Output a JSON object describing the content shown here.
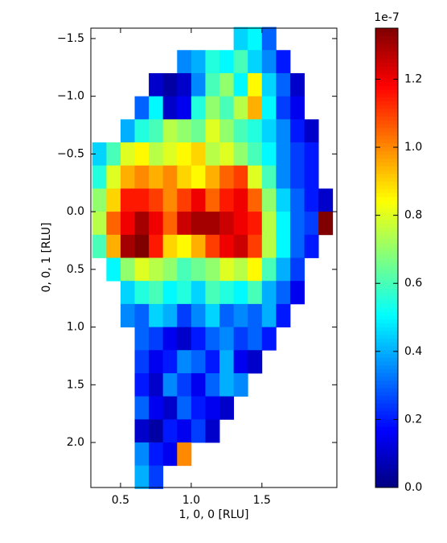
{
  "chart_data": {
    "type": "heatmap",
    "xlabel": "1, 0, 0 [RLU]",
    "ylabel": "0, 0, 1 [RLU]",
    "colormap": "jet",
    "colorbar_offset": "1e-7",
    "clim": [
      0,
      1.35
    ],
    "cticks": [
      {
        "value": 0,
        "label": "0.0"
      },
      0.2,
      0.4,
      0.6,
      0.8,
      {
        "value": 1,
        "label": "1.0"
      },
      1.2
    ],
    "xlim": [
      0.29,
      2.03
    ],
    "xticks": [
      0.5,
      {
        "value": 1,
        "label": "1.0"
      },
      1.5
    ],
    "ylim": [
      -1.59,
      2.39
    ],
    "y_inverted": true,
    "yticks": [
      {
        "value": -1.5,
        "label": "−1.5"
      },
      {
        "value": -1,
        "label": "−1.0"
      },
      {
        "value": -0.5,
        "label": "−0.5"
      },
      {
        "value": 0,
        "label": "0.0"
      },
      0.5,
      {
        "value": 1,
        "label": "1.0"
      },
      1.5,
      {
        "value": 2,
        "label": "2.0"
      }
    ],
    "xbins": [
      0.3,
      0.4,
      0.5,
      0.6,
      0.7,
      0.8,
      0.9,
      1.0,
      1.1,
      1.2,
      1.3,
      1.4,
      1.5,
      1.6,
      1.7,
      1.8,
      1.9,
      2.0
    ],
    "ybins": [
      -1.6,
      -1.4,
      -1.2,
      -1.0,
      -0.8,
      -0.6,
      -0.4,
      -0.2,
      0.0,
      0.2,
      0.4,
      0.6,
      0.8,
      1.0,
      1.2,
      1.4,
      1.6,
      1.8,
      2.0,
      2.2,
      2.4
    ],
    "values": [
      [
        null,
        null,
        null,
        null,
        null,
        null,
        null,
        null,
        null,
        null,
        0.45,
        0.5,
        0.3,
        null,
        null,
        null,
        null
      ],
      [
        null,
        null,
        null,
        null,
        null,
        null,
        0.35,
        0.4,
        0.55,
        0.5,
        0.6,
        0.45,
        0.35,
        0.2,
        null,
        null,
        null
      ],
      [
        null,
        null,
        null,
        null,
        0.1,
        0.05,
        0.1,
        0.35,
        0.6,
        0.7,
        0.5,
        0.85,
        0.45,
        0.3,
        0.1,
        null,
        null
      ],
      [
        null,
        null,
        null,
        0.3,
        0.5,
        0.1,
        0.15,
        0.55,
        0.7,
        0.6,
        0.75,
        0.95,
        0.5,
        0.25,
        0.15,
        null,
        null
      ],
      [
        null,
        null,
        0.4,
        0.55,
        0.6,
        0.75,
        0.7,
        0.65,
        0.8,
        0.7,
        0.6,
        0.55,
        0.45,
        0.35,
        0.2,
        0.1,
        null
      ],
      [
        0.45,
        0.6,
        0.8,
        0.85,
        0.75,
        0.8,
        0.85,
        0.9,
        0.75,
        0.8,
        0.7,
        0.6,
        0.5,
        0.35,
        0.25,
        0.2,
        null
      ],
      [
        0.55,
        0.8,
        0.95,
        1.0,
        0.95,
        1.0,
        0.9,
        0.85,
        0.95,
        1.05,
        1.1,
        0.8,
        0.6,
        0.35,
        0.25,
        0.2,
        null
      ],
      [
        0.7,
        0.9,
        1.15,
        1.15,
        1.1,
        1.0,
        1.1,
        1.2,
        1.05,
        1.15,
        1.2,
        1.05,
        0.7,
        0.45,
        0.3,
        0.2,
        0.1
      ],
      [
        0.75,
        1.05,
        1.2,
        1.3,
        1.2,
        1.05,
        1.25,
        1.3,
        1.3,
        1.25,
        1.2,
        1.15,
        0.75,
        0.5,
        0.3,
        0.25,
        1.35
      ],
      [
        0.6,
        0.95,
        1.3,
        1.35,
        1.15,
        0.9,
        0.85,
        0.95,
        1.1,
        1.2,
        1.25,
        1.1,
        0.75,
        0.5,
        0.3,
        0.2,
        null
      ],
      [
        null,
        0.5,
        0.7,
        0.8,
        0.75,
        0.7,
        0.6,
        0.65,
        0.7,
        0.8,
        0.75,
        0.85,
        0.6,
        0.4,
        0.25,
        null,
        null
      ],
      [
        null,
        null,
        0.45,
        0.55,
        0.6,
        0.5,
        0.55,
        0.45,
        0.6,
        0.55,
        0.5,
        0.6,
        0.4,
        0.3,
        0.15,
        null,
        null
      ],
      [
        null,
        null,
        0.35,
        0.3,
        0.45,
        0.4,
        0.25,
        0.35,
        0.45,
        0.3,
        0.35,
        0.3,
        0.4,
        0.2,
        null,
        null,
        null
      ],
      [
        null,
        null,
        null,
        0.3,
        0.25,
        0.15,
        0.1,
        0.2,
        0.3,
        0.35,
        0.25,
        0.3,
        0.2,
        null,
        null,
        null,
        null
      ],
      [
        null,
        null,
        null,
        0.25,
        0.15,
        0.2,
        0.35,
        0.3,
        0.2,
        0.4,
        0.15,
        0.1,
        null,
        null,
        null,
        null,
        null
      ],
      [
        null,
        null,
        null,
        0.2,
        0.1,
        0.35,
        0.25,
        0.15,
        0.3,
        0.4,
        0.35,
        null,
        null,
        null,
        null,
        null,
        null
      ],
      [
        null,
        null,
        null,
        0.3,
        0.15,
        0.1,
        0.3,
        0.2,
        0.15,
        0.1,
        null,
        null,
        null,
        null,
        null,
        null,
        null
      ],
      [
        null,
        null,
        null,
        0.1,
        0.05,
        0.2,
        0.15,
        0.25,
        0.1,
        null,
        null,
        null,
        null,
        null,
        null,
        null,
        null
      ],
      [
        null,
        null,
        null,
        0.35,
        0.2,
        0.15,
        1.0,
        null,
        null,
        null,
        null,
        null,
        null,
        null,
        null,
        null,
        null
      ],
      [
        null,
        null,
        null,
        0.4,
        0.25,
        null,
        null,
        null,
        null,
        null,
        null,
        null,
        null,
        null,
        null,
        null,
        null
      ]
    ]
  }
}
